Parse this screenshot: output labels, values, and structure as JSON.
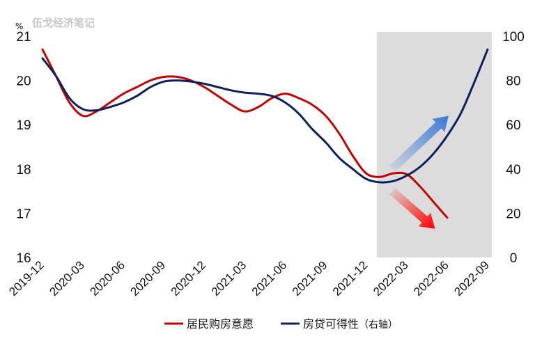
{
  "watermark": "伍戈经济笔记",
  "chart_data": {
    "type": "line",
    "left_unit": "%",
    "x_ticks": [
      "2019-12",
      "2020-03",
      "2020-06",
      "2020-09",
      "2020-12",
      "2021-03",
      "2021-06",
      "2021-09",
      "2021-12",
      "2022-03",
      "2022-06",
      "2022-09"
    ],
    "left_axis": {
      "min": 16,
      "max": 21,
      "ticks": [
        "16",
        "17",
        "18",
        "19",
        "20",
        "21"
      ]
    },
    "right_axis": {
      "min": 0,
      "max": 100,
      "ticks": [
        "0",
        "20",
        "40",
        "60",
        "80",
        "100"
      ]
    },
    "shaded_period": {
      "from": "2022-01",
      "to": "2022-09",
      "color": "#dcdcdc"
    },
    "series": [
      {
        "name": "居民购房意愿",
        "axis": "left",
        "color": "#c00000",
        "x": [
          "2019-12",
          "2020-01",
          "2020-02",
          "2020-03",
          "2020-04",
          "2020-05",
          "2020-06",
          "2020-07",
          "2020-08",
          "2020-09",
          "2020-10",
          "2020-11",
          "2020-12",
          "2021-01",
          "2021-02",
          "2021-03",
          "2021-04",
          "2021-05",
          "2021-06",
          "2021-07",
          "2021-08",
          "2021-09",
          "2021-10",
          "2021-11",
          "2021-12",
          "2022-01",
          "2022-02",
          "2022-03",
          "2022-04",
          "2022-05",
          "2022-06"
        ],
        "values": [
          20.7,
          20.1,
          19.5,
          19.2,
          19.3,
          19.5,
          19.7,
          19.85,
          20.0,
          20.08,
          20.08,
          20.0,
          19.85,
          19.65,
          19.45,
          19.3,
          19.4,
          19.6,
          19.7,
          19.6,
          19.45,
          19.2,
          18.8,
          18.3,
          17.9,
          17.82,
          17.9,
          17.88,
          17.6,
          17.25,
          16.9
        ]
      },
      {
        "name": "房贷可得性（右轴）",
        "axis": "right",
        "color": "#0d1f5c",
        "x": [
          "2019-12",
          "2020-01",
          "2020-02",
          "2020-03",
          "2020-04",
          "2020-05",
          "2020-06",
          "2020-07",
          "2020-08",
          "2020-09",
          "2020-10",
          "2020-11",
          "2020-12",
          "2021-01",
          "2021-02",
          "2021-03",
          "2021-04",
          "2021-05",
          "2021-06",
          "2021-07",
          "2021-08",
          "2021-09",
          "2021-10",
          "2021-11",
          "2021-12",
          "2022-01",
          "2022-02",
          "2022-03",
          "2022-04",
          "2022-05",
          "2022-06",
          "2022-07",
          "2022-08",
          "2022-09"
        ],
        "values": [
          90,
          82,
          72,
          67,
          66.5,
          68,
          70,
          73,
          77,
          79.5,
          80,
          79.5,
          78.5,
          77,
          75.5,
          74.5,
          74,
          73,
          70,
          65,
          58,
          52,
          45,
          40,
          35.5,
          34,
          34.5,
          37,
          41,
          47,
          55,
          65,
          79,
          94
        ]
      }
    ],
    "arrows": [
      {
        "direction": "up",
        "color": "#3b78d8",
        "from": [
          "2022-01",
          40
        ],
        "to": [
          "2022-06",
          64
        ]
      },
      {
        "direction": "down",
        "color": "#ff0000",
        "from": [
          "2022-01",
          30
        ],
        "to": [
          "2022-05",
          13
        ]
      }
    ]
  },
  "legend": {
    "series1": "居民购房意愿",
    "series2_main": "房贷可得性",
    "series2_suffix": "（右轴）"
  }
}
